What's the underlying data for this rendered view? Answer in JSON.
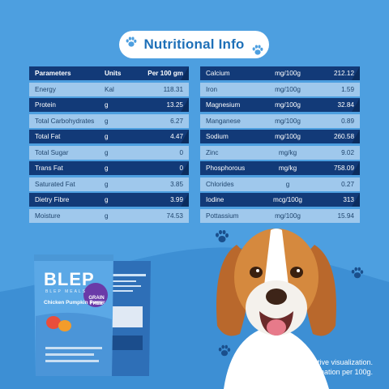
{
  "title": "Nutritional Info",
  "left_table": {
    "header": {
      "name": "Parameters",
      "unit": "Units",
      "value": "Per 100 gm"
    },
    "rows": [
      {
        "name": "Energy",
        "unit": "Kal",
        "value": "118.31"
      },
      {
        "name": "Protein",
        "unit": "g",
        "value": "13.25"
      },
      {
        "name": "Total Carbohydrates",
        "unit": "g",
        "value": "6.27"
      },
      {
        "name": "Total Fat",
        "unit": "g",
        "value": "4.47"
      },
      {
        "name": "Total Sugar",
        "unit": "g",
        "value": "0"
      },
      {
        "name": "Trans Fat",
        "unit": "g",
        "value": "0"
      },
      {
        "name": "Saturated Fat",
        "unit": "g",
        "value": "3.85"
      },
      {
        "name": "Dietry Fibre",
        "unit": "g",
        "value": "3.99"
      },
      {
        "name": "Moisture",
        "unit": "g",
        "value": "74.53"
      }
    ]
  },
  "right_table": {
    "rows": [
      {
        "name": "Calcium",
        "unit": "mg/100g",
        "value": "212.12"
      },
      {
        "name": "Iron",
        "unit": "mg/100g",
        "value": "1.59"
      },
      {
        "name": "Magnesium",
        "unit": "mg/100g",
        "value": "32.84"
      },
      {
        "name": "Manganese",
        "unit": "mg/100g",
        "value": "0.89"
      },
      {
        "name": "Sodium",
        "unit": "mg/100g",
        "value": "260.58"
      },
      {
        "name": "Zinc",
        "unit": "mg/kg",
        "value": "9.02"
      },
      {
        "name": "Phosphorous",
        "unit": "mg/kg",
        "value": "758.09"
      },
      {
        "name": "Chlorides",
        "unit": "g",
        "value": "0.27"
      },
      {
        "name": "Iodine",
        "unit": "mcg/100g",
        "value": "313"
      },
      {
        "name": "Pottassium",
        "unit": "mg/100g",
        "value": "15.94"
      }
    ]
  },
  "product": {
    "brand": "BLEP",
    "brand_sub": "BLEP MEALS",
    "name": "Chicken Pumpkin Pawer",
    "badge_line1": "GRAIN",
    "badge_line2": "FREE"
  },
  "caption": {
    "line1": "Creative visualization.",
    "line2": "Nutritional infromation per 100g."
  },
  "colors": {
    "background": "#4d9fe0",
    "dark_row": "#123a78",
    "light_row": "#9fc8ec",
    "title": "#1e70b8"
  },
  "icons": [
    "paw-icon",
    "paw-icon",
    "paw-icon",
    "paw-icon",
    "paw-icon"
  ]
}
